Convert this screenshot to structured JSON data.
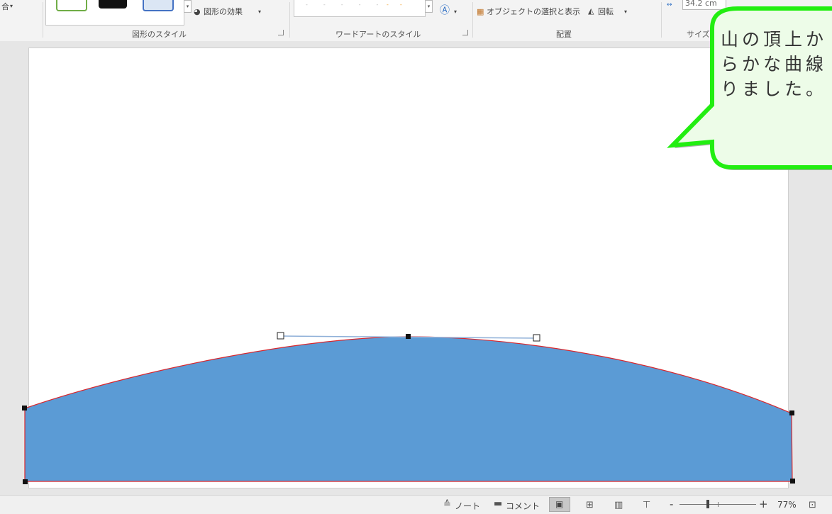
{
  "ribbon": {
    "left_partial_label": "合",
    "shape_effects_label": "図形の効果",
    "select_objects_label": "オブジェクトの選択と表示",
    "rotate_label": "回転",
    "size_value": "34.2 cm",
    "groups": {
      "shape_styles": "図形のスタイル",
      "wordart_styles": "ワードアートのスタイル",
      "arrange": "配置",
      "size": "サイズ"
    }
  },
  "callout": {
    "line1": "山の頂上か",
    "line2": "らかな曲線",
    "line3": "りました。"
  },
  "statusbar": {
    "notes_label": "ノート",
    "comments_label": "コメント",
    "zoom_minus": "-",
    "zoom_plus": "+",
    "zoom_percent": "77%"
  },
  "colors": {
    "shape_fill": "#5b9bd5",
    "shape_outline": "#d9262c",
    "callout_border": "#22ee11",
    "callout_fill": "#edfce8"
  }
}
